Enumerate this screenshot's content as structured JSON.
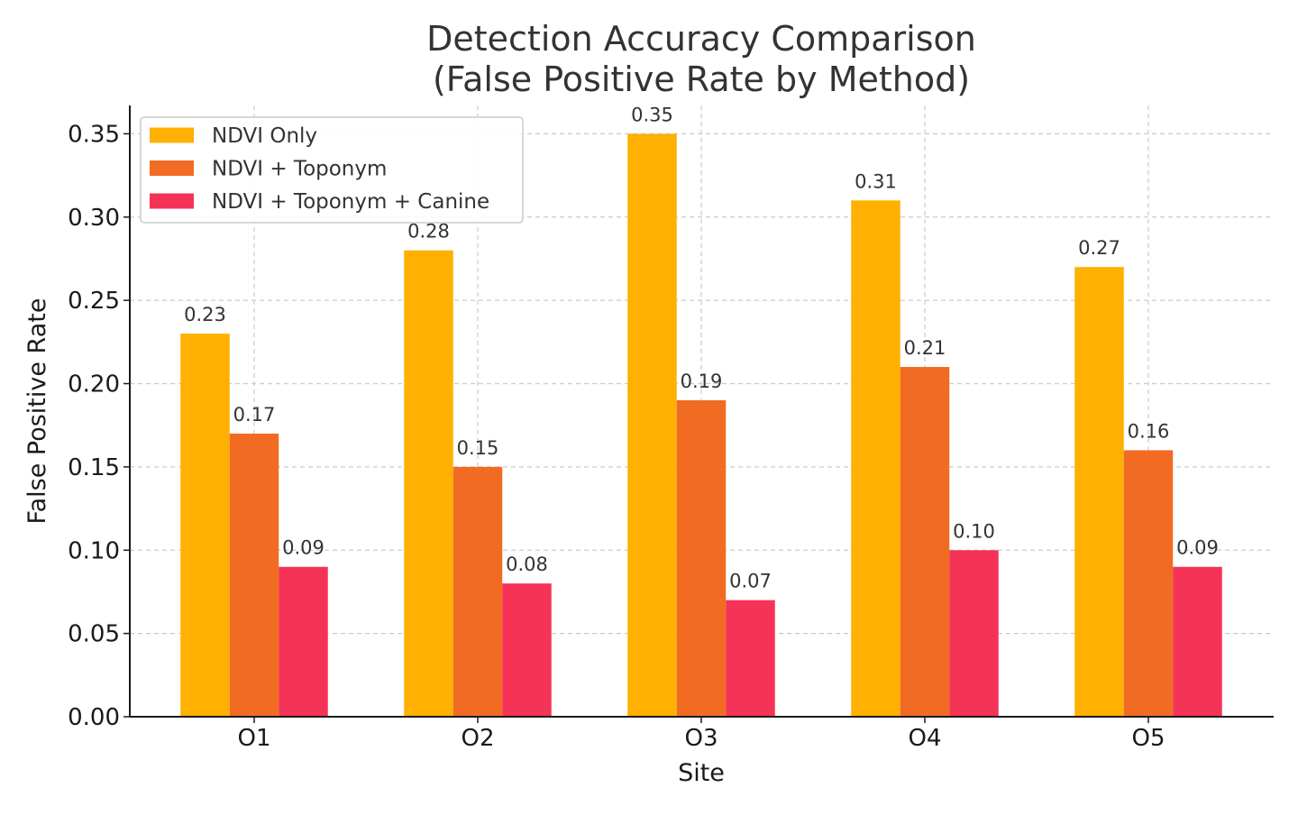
{
  "chart_data": {
    "type": "bar",
    "title": [
      "Detection Accuracy Comparison",
      "(False Positive Rate by Method)"
    ],
    "xlabel": "Site",
    "ylabel": "False Positive Rate",
    "categories": [
      "O1",
      "O2",
      "O3",
      "O4",
      "O5"
    ],
    "ylim": [
      0,
      0.367
    ],
    "yticks": [
      "0.00",
      "0.05",
      "0.10",
      "0.15",
      "0.20",
      "0.25",
      "0.30",
      "0.35"
    ],
    "grid": true,
    "legend_position": "top-left",
    "series": [
      {
        "name": "NDVI Only",
        "color": "#FFB000",
        "values": [
          0.23,
          0.28,
          0.35,
          0.31,
          0.27
        ],
        "labels": [
          "0.23",
          "0.28",
          "0.35",
          "0.31",
          "0.27"
        ]
      },
      {
        "name": "NDVI + Toponym",
        "color": "#F26B22",
        "values": [
          0.17,
          0.15,
          0.19,
          0.21,
          0.16
        ],
        "labels": [
          "0.17",
          "0.15",
          "0.19",
          "0.21",
          "0.16"
        ]
      },
      {
        "name": "NDVI + Toponym + Canine",
        "color": "#F53356",
        "values": [
          0.09,
          0.08,
          0.07,
          0.1,
          0.09
        ],
        "labels": [
          "0.09",
          "0.08",
          "0.07",
          "0.10",
          "0.09"
        ]
      }
    ]
  }
}
